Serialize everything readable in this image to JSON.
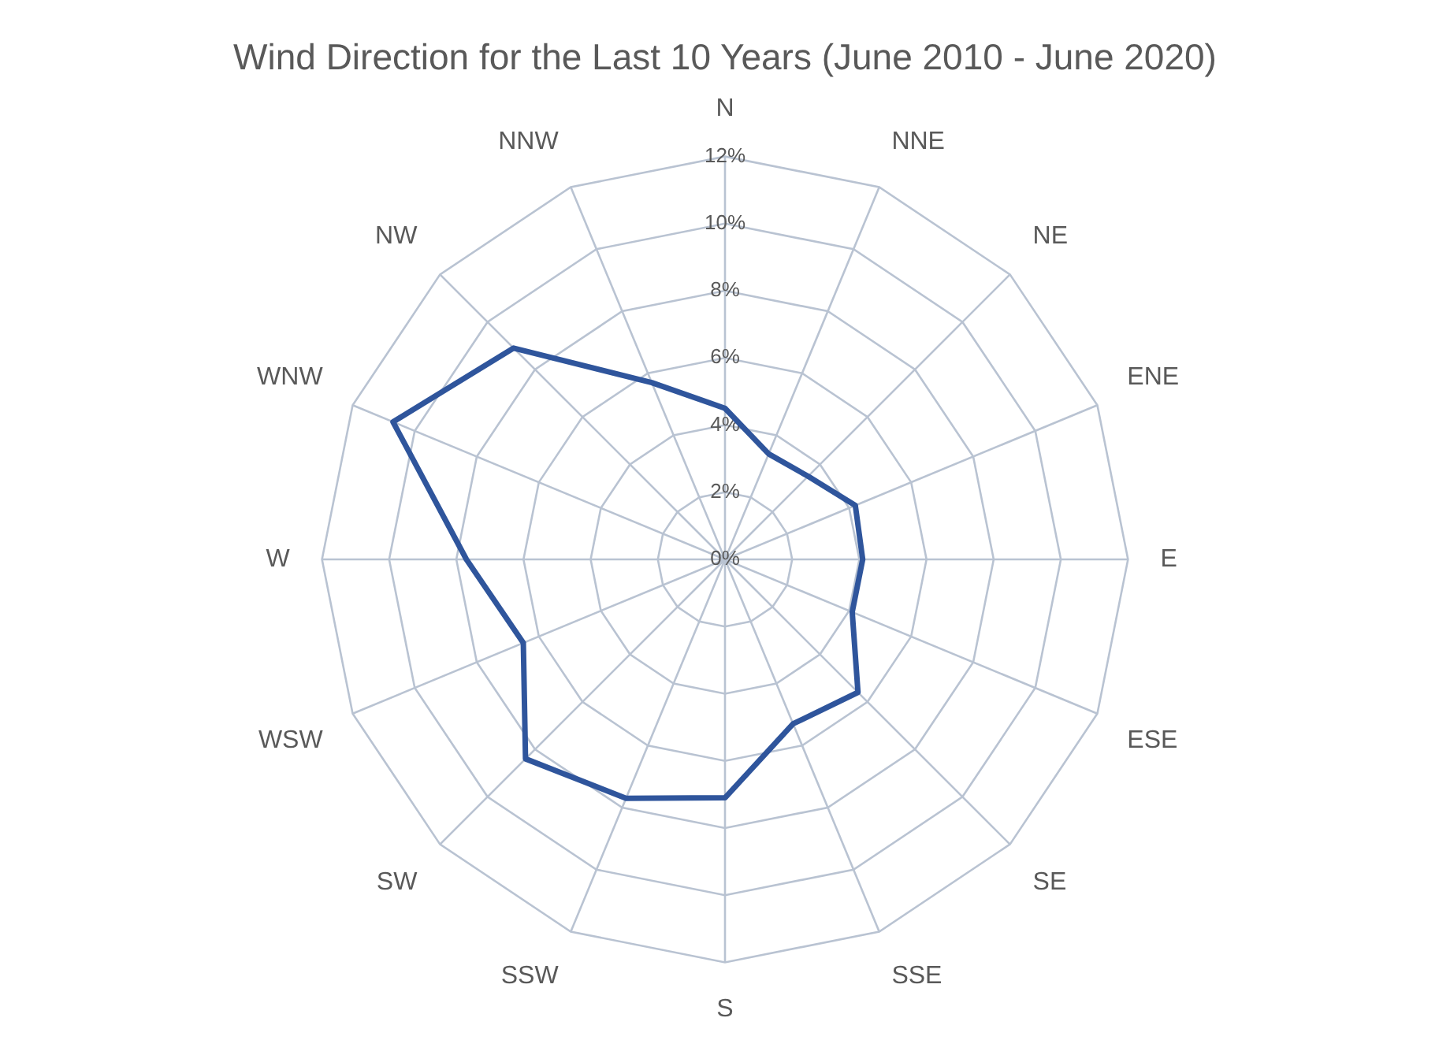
{
  "chart_data": {
    "type": "radar",
    "title": "Wind Direction for the Last 10 Years (June 2010 - June 2020)",
    "categories": [
      "N",
      "NNE",
      "NE",
      "ENE",
      "E",
      "ESE",
      "SE",
      "SSE",
      "S",
      "SSW",
      "SW",
      "WSW",
      "W",
      "WNW",
      "NW",
      "NNW"
    ],
    "series": [
      {
        "color": "#2f559c",
        "values": [
          4.5,
          3.4,
          3.5,
          4.2,
          4.1,
          4.1,
          5.6,
          5.3,
          7.1,
          7.7,
          8.4,
          6.5,
          7.7,
          10.7,
          8.9,
          5.7
        ]
      }
    ],
    "ylim": [
      0,
      12
    ],
    "yticks": [
      {
        "value": 0,
        "label": "0%"
      },
      {
        "value": 2,
        "label": "2%"
      },
      {
        "value": 4,
        "label": "4%"
      },
      {
        "value": 6,
        "label": "6%"
      },
      {
        "value": 8,
        "label": "8%"
      },
      {
        "value": 10,
        "label": "10%"
      },
      {
        "value": 12,
        "label": "12%"
      }
    ],
    "grid": true,
    "legend": false,
    "marker": "none",
    "line_style": "solid"
  }
}
